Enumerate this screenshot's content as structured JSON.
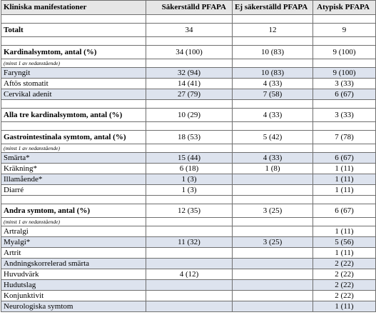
{
  "headers": [
    "Kliniska manifestationer",
    "Säkerställd PFAPA",
    "Ej säkerställd PFAPA",
    "Atypisk PFAPA"
  ],
  "rows": [
    {
      "kind": "spacer"
    },
    {
      "kind": "bold",
      "label": "Totalt",
      "v1": "34",
      "v2": "12",
      "v3": "9"
    },
    {
      "kind": "spacer"
    },
    {
      "kind": "bold",
      "label": "Kardinalsymtom, antal (%)",
      "v1": "34 (100)",
      "v2": "10 (83)",
      "v3": "9 (100)"
    },
    {
      "kind": "note",
      "label": "(minst 1 av nedanstående)"
    },
    {
      "kind": "item",
      "shade": true,
      "label": "Faryngit",
      "v1": "32 (94)",
      "v2": "10 (83)",
      "v3": "9 (100)"
    },
    {
      "kind": "item",
      "shade": false,
      "label": "Aftös stomatit",
      "v1": "14 (41)",
      "v2": "4 (33)",
      "v3": "3 (33)"
    },
    {
      "kind": "item",
      "shade": true,
      "label": "Cervikal adenit",
      "v1": "27 (79)",
      "v2": "7 (58)",
      "v3": "6 (67)"
    },
    {
      "kind": "spacer"
    },
    {
      "kind": "bold",
      "label": "Alla tre kardinalsymtom, antal (%)",
      "v1": "10 (29)",
      "v2": "4 (33)",
      "v3": "3 (33)"
    },
    {
      "kind": "spacer"
    },
    {
      "kind": "bold",
      "label": "Gastrointestinala symtom, antal (%)",
      "v1": "18 (53)",
      "v2": "5 (42)",
      "v3": "7 (78)"
    },
    {
      "kind": "note",
      "label": "(minst 1 av nedanstående)"
    },
    {
      "kind": "item",
      "shade": true,
      "label": "Smärta*",
      "v1": "15 (44)",
      "v2": "4 (33)",
      "v3": "6 (67)"
    },
    {
      "kind": "item",
      "shade": false,
      "label": "Kräkning*",
      "v1": "6 (18)",
      "v2": "1 (8)",
      "v3": "1 (11)"
    },
    {
      "kind": "item",
      "shade": true,
      "label": "Illamående*",
      "v1": "1 (3)",
      "v2": "",
      "v3": "1 (11)"
    },
    {
      "kind": "item",
      "shade": false,
      "label": "Diarré",
      "v1": "1 (3)",
      "v2": "",
      "v3": "1 (11)"
    },
    {
      "kind": "spacer"
    },
    {
      "kind": "bold",
      "label": "Andra symtom, antal (%)",
      "v1": "12 (35)",
      "v2": "3 (25)",
      "v3": "6 (67)"
    },
    {
      "kind": "note",
      "label": "(minst 1 av nedanstående)"
    },
    {
      "kind": "item",
      "shade": false,
      "label": "Artralgi",
      "v1": "",
      "v2": "",
      "v3": "1 (11)"
    },
    {
      "kind": "item",
      "shade": true,
      "label": "Myalgi*",
      "v1": "11 (32)",
      "v2": "3 (25)",
      "v3": "5 (56)"
    },
    {
      "kind": "item",
      "shade": false,
      "label": "Artrit",
      "v1": "",
      "v2": "",
      "v3": "1 (11)"
    },
    {
      "kind": "item",
      "shade": true,
      "label": "Andningskorrelerad smärta",
      "v1": "",
      "v2": "",
      "v3": "2 (22)"
    },
    {
      "kind": "item",
      "shade": false,
      "label": "Huvudvärk",
      "v1": "4 (12)",
      "v2": "",
      "v3": "2 (22)"
    },
    {
      "kind": "item",
      "shade": true,
      "label": "Hudutslag",
      "v1": "",
      "v2": "",
      "v3": "2 (22)"
    },
    {
      "kind": "item",
      "shade": false,
      "label": "Konjunktivit",
      "v1": "",
      "v2": "",
      "v3": "2 (22)"
    },
    {
      "kind": "item",
      "shade": true,
      "label": "Neurologiska symtom",
      "v1": "",
      "v2": "",
      "v3": "1 (11)"
    }
  ]
}
